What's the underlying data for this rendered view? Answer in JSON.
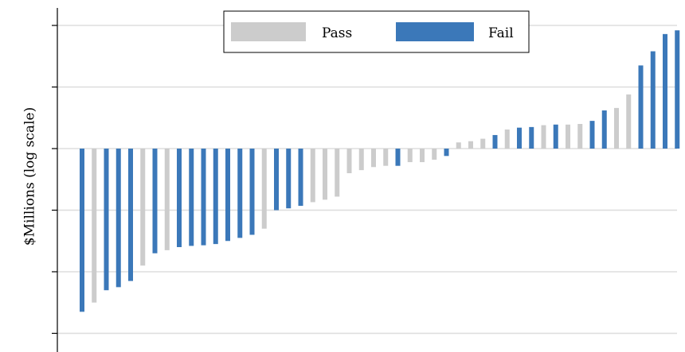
{
  "chart_data": {
    "type": "bar",
    "title": "",
    "xlabel": "",
    "ylabel": "$Millions (log scale)",
    "yscale": "log",
    "ylim_decades": [
      -3,
      2
    ],
    "grid": true,
    "legend": {
      "placement": "top-center",
      "entries": [
        "Pass",
        "Fail"
      ]
    },
    "colors": {
      "Pass": "#cccccc",
      "Fail": "#3b78b9",
      "grid": "#dddddd",
      "axis": "#000000"
    },
    "bars": [
      {
        "status": "Fail",
        "log10": -2.65
      },
      {
        "status": "Pass",
        "log10": -2.5
      },
      {
        "status": "Fail",
        "log10": -2.3
      },
      {
        "status": "Fail",
        "log10": -2.25
      },
      {
        "status": "Fail",
        "log10": -2.15
      },
      {
        "status": "Pass",
        "log10": -1.9
      },
      {
        "status": "Fail",
        "log10": -1.7
      },
      {
        "status": "Pass",
        "log10": -1.65
      },
      {
        "status": "Fail",
        "log10": -1.6
      },
      {
        "status": "Fail",
        "log10": -1.58
      },
      {
        "status": "Fail",
        "log10": -1.57
      },
      {
        "status": "Fail",
        "log10": -1.55
      },
      {
        "status": "Fail",
        "log10": -1.5
      },
      {
        "status": "Fail",
        "log10": -1.45
      },
      {
        "status": "Fail",
        "log10": -1.4
      },
      {
        "status": "Pass",
        "log10": -1.3
      },
      {
        "status": "Fail",
        "log10": -1.0
      },
      {
        "status": "Fail",
        "log10": -0.97
      },
      {
        "status": "Fail",
        "log10": -0.93
      },
      {
        "status": "Pass",
        "log10": -0.87
      },
      {
        "status": "Pass",
        "log10": -0.83
      },
      {
        "status": "Pass",
        "log10": -0.78
      },
      {
        "status": "Pass",
        "log10": -0.4
      },
      {
        "status": "Pass",
        "log10": -0.35
      },
      {
        "status": "Pass",
        "log10": -0.3
      },
      {
        "status": "Pass",
        "log10": -0.28
      },
      {
        "status": "Fail",
        "log10": -0.28
      },
      {
        "status": "Pass",
        "log10": -0.22
      },
      {
        "status": "Pass",
        "log10": -0.22
      },
      {
        "status": "Pass",
        "log10": -0.18
      },
      {
        "status": "Fail",
        "log10": -0.12
      },
      {
        "status": "Pass",
        "log10": 0.1
      },
      {
        "status": "Pass",
        "log10": 0.12
      },
      {
        "status": "Pass",
        "log10": 0.16
      },
      {
        "status": "Fail",
        "log10": 0.22
      },
      {
        "status": "Pass",
        "log10": 0.31
      },
      {
        "status": "Fail",
        "log10": 0.34
      },
      {
        "status": "Fail",
        "log10": 0.35
      },
      {
        "status": "Pass",
        "log10": 0.38
      },
      {
        "status": "Fail",
        "log10": 0.39
      },
      {
        "status": "Pass",
        "log10": 0.39
      },
      {
        "status": "Pass",
        "log10": 0.4
      },
      {
        "status": "Fail",
        "log10": 0.45
      },
      {
        "status": "Fail",
        "log10": 0.62
      },
      {
        "status": "Pass",
        "log10": 0.66
      },
      {
        "status": "Pass",
        "log10": 0.88
      },
      {
        "status": "Fail",
        "log10": 1.35
      },
      {
        "status": "Fail",
        "log10": 1.58
      },
      {
        "status": "Fail",
        "log10": 1.86
      },
      {
        "status": "Fail",
        "log10": 1.92
      }
    ]
  }
}
